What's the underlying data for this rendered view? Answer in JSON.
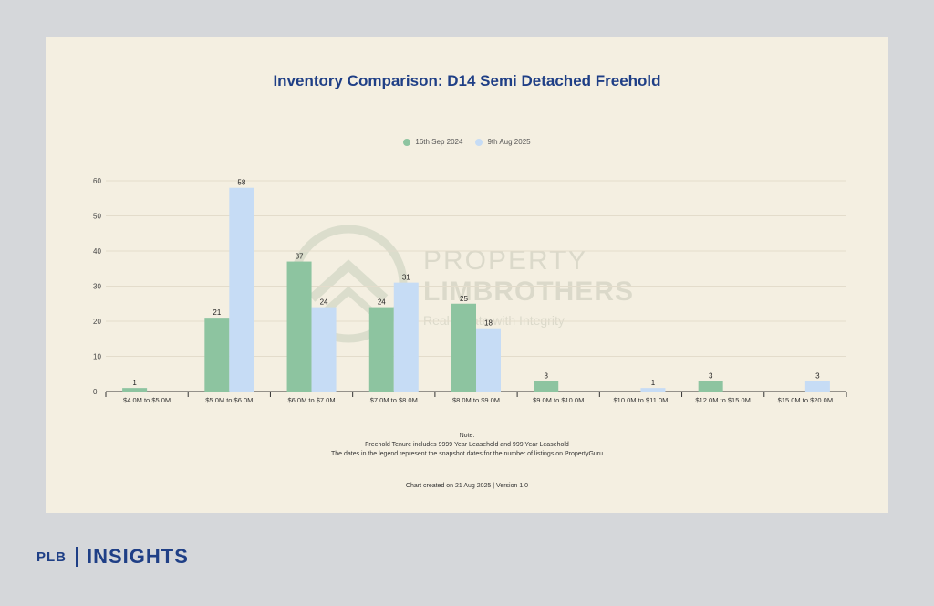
{
  "chart_data": {
    "type": "bar",
    "title": "Inventory Comparison: D14 Semi Detached Freehold",
    "categories": [
      "$4.0M to $5.0M",
      "$5.0M to $6.0M",
      "$6.0M to $7.0M",
      "$7.0M to $8.0M",
      "$8.0M to $9.0M",
      "$9.0M to $10.0M",
      "$10.0M to $11.0M",
      "$12.0M to $15.0M",
      "$15.0M to $20.0M"
    ],
    "series": [
      {
        "name": "16th Sep 2024",
        "color": "#8dc4a0",
        "values": [
          1,
          21,
          37,
          24,
          25,
          3,
          null,
          3,
          null
        ]
      },
      {
        "name": "9th Aug 2025",
        "color": "#c6dcf5",
        "values": [
          null,
          58,
          24,
          31,
          18,
          null,
          1,
          null,
          3
        ]
      }
    ],
    "yticks": [
      0,
      10,
      20,
      30,
      40,
      50,
      60
    ],
    "ylim": [
      0,
      60
    ],
    "grid": true,
    "legend": "top-center"
  },
  "notes": {
    "heading": "Note:",
    "line1": "Freehold Tenure includes 9999 Year Leasehold and 999 Year Leasehold",
    "line2": "The dates in the legend represent the snapshot dates for the number of listings on PropertyGuru"
  },
  "footer": "Chart created on 21 Aug 2025 | Version 1.0",
  "watermark": {
    "line1": "PROPERTY",
    "line2": "LIMBROTHERS",
    "line3": "Real Estate with Integrity"
  },
  "brand": {
    "left": "PLB",
    "right": "INSIGHTS",
    "color": "#1f3f86"
  }
}
